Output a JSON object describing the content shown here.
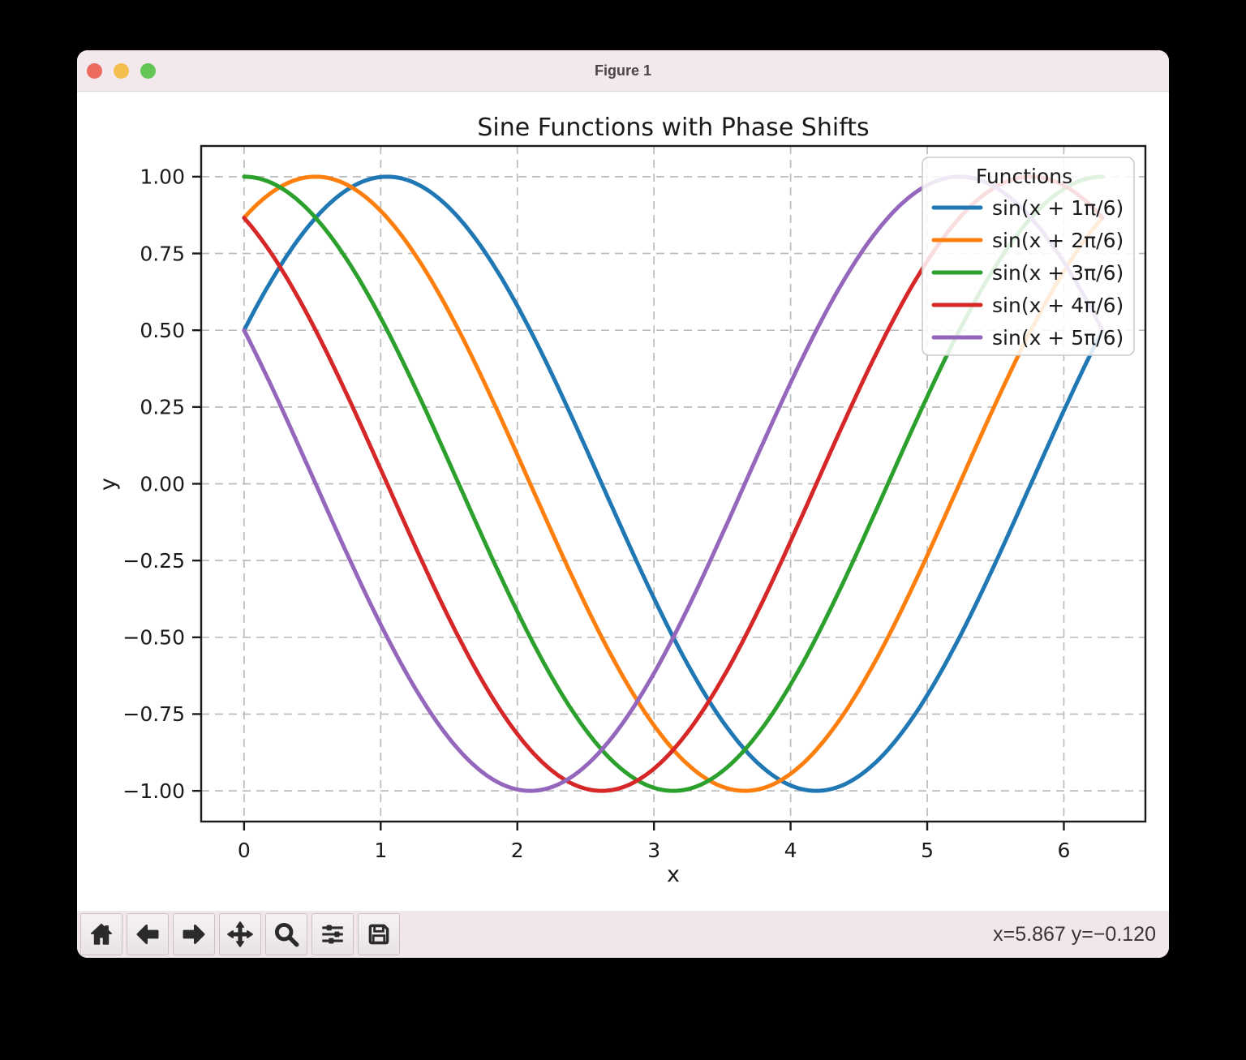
{
  "window": {
    "title": "Figure 1"
  },
  "traffic_lights": {
    "close": "close-button",
    "minimize": "minimize-button",
    "zoom": "zoom-button"
  },
  "toolbar": {
    "buttons": [
      "home",
      "back",
      "forward",
      "pan",
      "zoom-to-rect",
      "configure-subplots",
      "save"
    ],
    "status": "x=5.867 y=−0.120"
  },
  "chart_data": {
    "type": "line",
    "title": "Sine Functions with Phase Shifts",
    "xlabel": "x",
    "ylabel": "y",
    "xlim": [
      -0.314,
      6.597
    ],
    "ylim": [
      -1.1,
      1.1
    ],
    "xticks": [
      0,
      1,
      2,
      3,
      4,
      5,
      6
    ],
    "xticklabels": [
      "0",
      "1",
      "2",
      "3",
      "4",
      "5",
      "6"
    ],
    "yticks": [
      -1.0,
      -0.75,
      -0.5,
      -0.25,
      0.0,
      0.25,
      0.5,
      0.75,
      1.0
    ],
    "yticklabels": [
      "−1.00",
      "−0.75",
      "−0.50",
      "−0.25",
      "0.00",
      "0.25",
      "0.50",
      "0.75",
      "1.00"
    ],
    "x_start": 0,
    "x_end": 6.283185,
    "samples": 240,
    "amplitude": 1,
    "grid": true,
    "grid_style": "dashed",
    "legend": {
      "title": "Functions",
      "position": "upper right"
    },
    "series": [
      {
        "label": "sin(x + 1π/6)",
        "phase": 0.523599,
        "color": "#1f77b4"
      },
      {
        "label": "sin(x + 2π/6)",
        "phase": 1.047198,
        "color": "#ff7f0e"
      },
      {
        "label": "sin(x + 3π/6)",
        "phase": 1.570796,
        "color": "#2ca02c"
      },
      {
        "label": "sin(x + 4π/6)",
        "phase": 2.094395,
        "color": "#d62728"
      },
      {
        "label": "sin(x + 5π/6)",
        "phase": 2.617994,
        "color": "#9467bd"
      }
    ]
  }
}
